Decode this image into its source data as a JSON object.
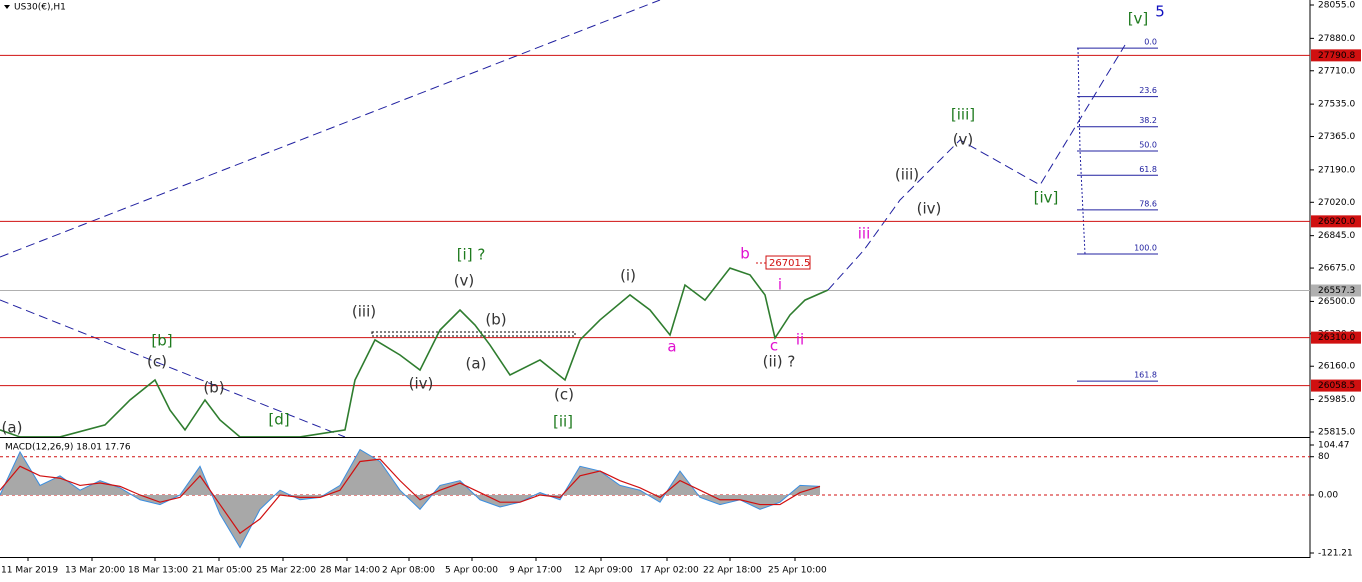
{
  "chart_data": {
    "type": "line",
    "title": "US30(€),H1",
    "xlim": [
      0,
      1310
    ],
    "xticks": [
      {
        "value": 28,
        "label": "11 Mar 2019"
      },
      {
        "value": 92,
        "label": "13 Mar 20:00"
      },
      {
        "value": 155,
        "label": "18 Mar 13:00"
      },
      {
        "value": 219,
        "label": "21 Mar 05:00"
      },
      {
        "value": 283,
        "label": "25 Mar 22:00"
      },
      {
        "value": 347,
        "label": "28 Mar 14:00"
      },
      {
        "value": 409,
        "label": "2 Apr 08:00"
      },
      {
        "value": 472,
        "label": "5 Apr 00:00"
      },
      {
        "value": 536,
        "label": "9 Apr 17:00"
      },
      {
        "value": 601,
        "label": "12 Apr 09:00"
      },
      {
        "value": 667,
        "label": "17 Apr 02:00"
      },
      {
        "value": 730,
        "label": "22 Apr 18:00"
      },
      {
        "value": 795,
        "label": "25 Apr 10:00"
      }
    ],
    "ylim": [
      25815,
      28055
    ],
    "yticks": [
      {
        "value": 28055,
        "label": "28055.0"
      },
      {
        "value": 27880,
        "label": "27880.0"
      },
      {
        "value": 27710,
        "label": "27710.0"
      },
      {
        "value": 27535,
        "label": "27535.0"
      },
      {
        "value": 27365,
        "label": "27365.0"
      },
      {
        "value": 27190,
        "label": "27190.0"
      },
      {
        "value": 27020,
        "label": "27020.0"
      },
      {
        "value": 26845,
        "label": "26845.0"
      },
      {
        "value": 26675,
        "label": "26675.0"
      },
      {
        "value": 26500,
        "label": "26500.0"
      },
      {
        "value": 26330,
        "label": "26330.0"
      },
      {
        "value": 26160,
        "label": "26160.0"
      },
      {
        "value": 25985,
        "label": "25985.0"
      },
      {
        "value": 25815,
        "label": "25815.0"
      }
    ],
    "x": [
      0,
      20,
      60,
      105,
      130,
      155,
      170,
      185,
      205,
      220,
      240,
      300,
      345,
      355,
      375,
      400,
      420,
      440,
      460,
      475,
      490,
      510,
      540,
      565,
      580,
      600,
      630,
      650,
      670,
      685,
      705,
      730,
      750,
      765,
      775,
      790,
      805,
      828
    ],
    "series": [
      {
        "name": "US30",
        "color": "#2f7d2f",
        "values": [
          25826,
          25789,
          25789,
          25852,
          25983,
          26088,
          25930,
          25826,
          25983,
          25878,
          25789,
          25789,
          25826,
          26088,
          26298,
          26219,
          26140,
          26350,
          26455,
          26376,
          26271,
          26114,
          26193,
          26088,
          26298,
          26403,
          26534,
          26455,
          26324,
          26586,
          26507,
          26675,
          26639,
          26534,
          26308,
          26429,
          26507,
          26560
        ]
      }
    ],
    "levels": [
      {
        "value": 27790.8,
        "label": "27790.8",
        "color": "#d01010"
      },
      {
        "value": 26920.0,
        "label": "26920.0",
        "color": "#d01010"
      },
      {
        "value": 26310.0,
        "label": "26310.0",
        "color": "#d01010"
      },
      {
        "value": 26058.5,
        "label": "26058.5",
        "color": "#d01010"
      },
      {
        "value": 26557.3,
        "label": "26557.3",
        "color": "#b0b0b0"
      }
    ],
    "price_marker": {
      "value": 26701.5,
      "label": "26701.5"
    },
    "fib": {
      "p0": 27829,
      "p100": 26749,
      "levels": [
        {
          "value": 0,
          "label": "0.0"
        },
        {
          "value": 23.6,
          "label": "23.6"
        },
        {
          "value": 38.2,
          "label": "38.2"
        },
        {
          "value": 50,
          "label": "50.0"
        },
        {
          "value": 61.8,
          "label": "61.8"
        },
        {
          "value": 78.6,
          "label": "78.6"
        },
        {
          "value": 100,
          "label": "100.0"
        },
        {
          "value": 161.8,
          "label": "161.8"
        }
      ]
    },
    "annotations": [
      {
        "text": "(a)",
        "color": "#333"
      },
      {
        "text": "[b]",
        "color": "#1e7a1e"
      },
      {
        "text": "(c)",
        "color": "#333"
      },
      {
        "text": "(b)",
        "color": "#333"
      },
      {
        "text": "[d]",
        "color": "#1e7a1e"
      },
      {
        "text": "(iii)",
        "color": "#333"
      },
      {
        "text": "(iv)",
        "color": "#333"
      },
      {
        "text": "[i] ?",
        "color": "#1e7a1e"
      },
      {
        "text": "(v)",
        "color": "#333"
      },
      {
        "text": "(b)",
        "color": "#333"
      },
      {
        "text": "(a)",
        "color": "#333"
      },
      {
        "text": "(c)",
        "color": "#333"
      },
      {
        "text": "[ii]",
        "color": "#1e7a1e"
      },
      {
        "text": "(i)",
        "color": "#333"
      },
      {
        "text": "a",
        "color": "#e010d0"
      },
      {
        "text": "b",
        "color": "#e010d0"
      },
      {
        "text": "i",
        "color": "#e010d0"
      },
      {
        "text": "c",
        "color": "#e010d0"
      },
      {
        "text": "ii",
        "color": "#e010d0"
      },
      {
        "text": "(ii) ?",
        "color": "#333"
      },
      {
        "text": "iii",
        "color": "#e010d0"
      },
      {
        "text": "(iii)",
        "color": "#333"
      },
      {
        "text": "(iv)",
        "color": "#333"
      },
      {
        "text": "[iii]",
        "color": "#1e7a1e"
      },
      {
        "text": "(v)",
        "color": "#333"
      },
      {
        "text": "[iv]",
        "color": "#1e7a1e"
      },
      {
        "text": "[v]",
        "color": "#1e7a1e"
      },
      {
        "text": "5",
        "color": "#1010c0"
      }
    ],
    "macd": {
      "label": "MACD(12,26,9) 18.01 17.76",
      "ylim": [
        -121.21,
        104.47
      ],
      "yticks": [
        104.47,
        80,
        {
          "value": 0,
          "label": "0.00"
        },
        -121.21
      ],
      "x": [
        0,
        20,
        40,
        60,
        80,
        100,
        120,
        140,
        160,
        180,
        200,
        220,
        240,
        260,
        280,
        300,
        320,
        340,
        360,
        380,
        400,
        420,
        440,
        460,
        480,
        500,
        520,
        540,
        560,
        580,
        600,
        620,
        640,
        660,
        680,
        700,
        720,
        740,
        760,
        780,
        800,
        820
      ],
      "series": [
        {
          "name": "MACD",
          "color": "#a8a8a8",
          "values": [
            0,
            90,
            20,
            40,
            10,
            30,
            15,
            -10,
            -20,
            0,
            60,
            -40,
            -110,
            -30,
            10,
            -10,
            -5,
            20,
            95,
            70,
            10,
            -30,
            20,
            30,
            -10,
            -25,
            -15,
            5,
            -10,
            60,
            50,
            20,
            10,
            -15,
            50,
            -5,
            -20,
            -10,
            -30,
            -15,
            20,
            18
          ]
        },
        {
          "name": "Signal",
          "color": "#d01010",
          "values": [
            10,
            60,
            40,
            35,
            20,
            25,
            18,
            0,
            -15,
            -5,
            40,
            -20,
            -80,
            -50,
            0,
            -5,
            -5,
            10,
            70,
            75,
            30,
            -10,
            10,
            25,
            5,
            -15,
            -15,
            0,
            -5,
            40,
            50,
            30,
            15,
            -5,
            30,
            10,
            -10,
            -10,
            -20,
            -20,
            5,
            18
          ]
        }
      ]
    }
  }
}
